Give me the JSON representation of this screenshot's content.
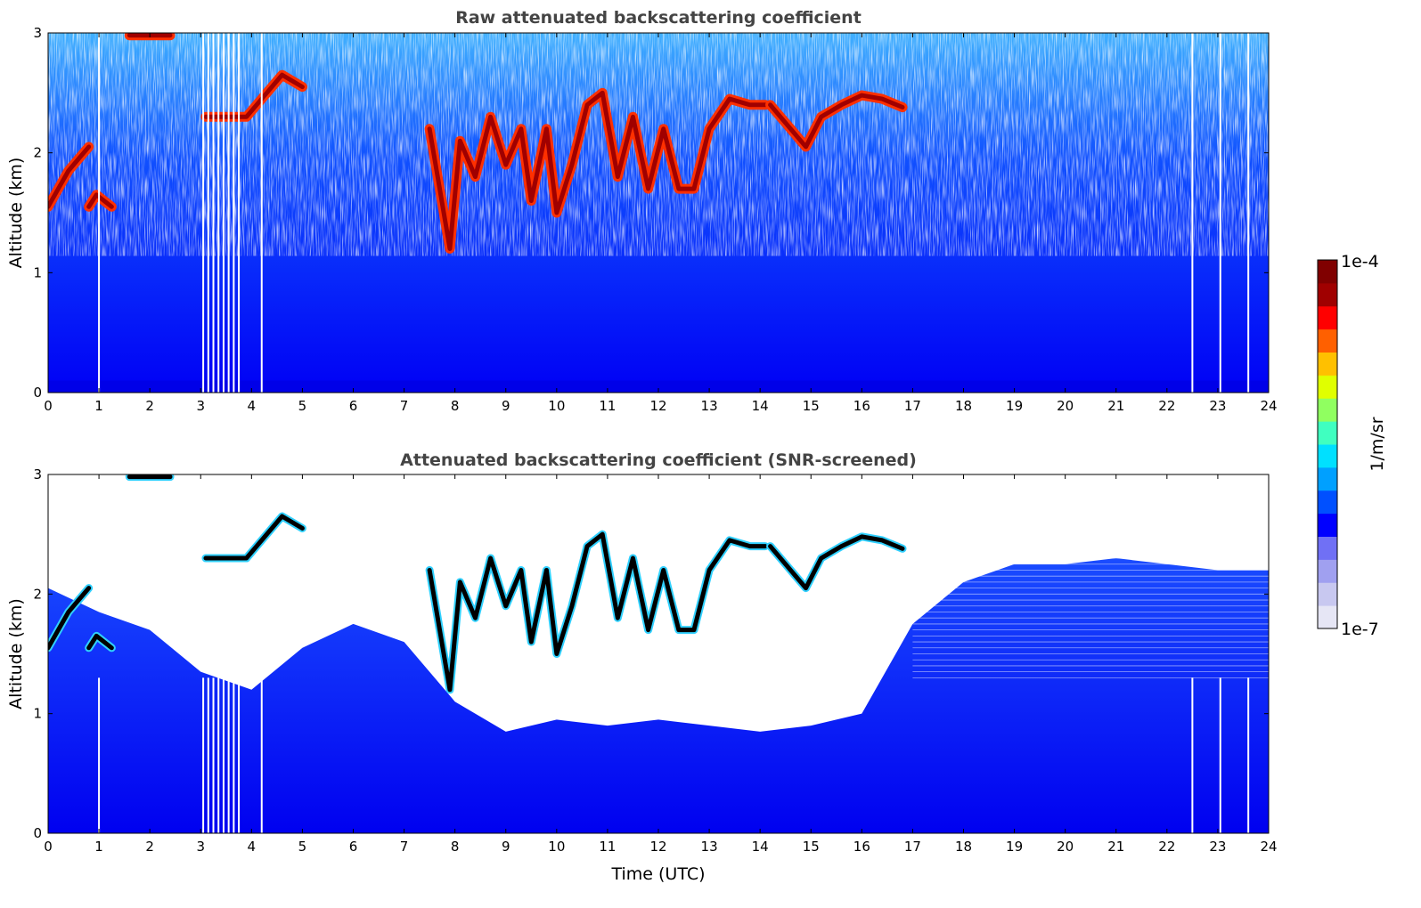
{
  "chart_data": [
    {
      "type": "heatmap",
      "title": "Raw attenuated backscattering coefficient",
      "xlabel": "",
      "ylabel": "Altitude (km)",
      "xlim": [
        0,
        24
      ],
      "ylim": [
        0,
        3
      ],
      "x_ticks": [
        "0",
        "1",
        "2",
        "3",
        "4",
        "5",
        "6",
        "7",
        "8",
        "9",
        "10",
        "11",
        "12",
        "13",
        "14",
        "15",
        "16",
        "17",
        "18",
        "19",
        "20",
        "21",
        "22",
        "23",
        "24"
      ],
      "y_ticks": [
        "0",
        "1",
        "2",
        "3"
      ],
      "colormap": "jet",
      "missing_color": "#ffffff",
      "blank_time_columns_utc": [
        1.0,
        3.05,
        3.15,
        3.25,
        3.35,
        3.45,
        3.55,
        3.65,
        3.75,
        4.2,
        22.5,
        23.05,
        23.6
      ],
      "cloud_layer_tracks": [
        {
          "x": [
            0.0,
            0.2,
            0.4,
            0.6,
            0.8
          ],
          "y": [
            1.55,
            1.7,
            1.85,
            1.95,
            2.05
          ]
        },
        {
          "x": [
            0.8,
            0.95,
            1.1,
            1.25
          ],
          "y": [
            1.55,
            1.65,
            1.6,
            1.55
          ]
        },
        {
          "x": [
            1.6,
            2.0,
            2.4
          ],
          "y": [
            2.98,
            2.98,
            2.98
          ]
        },
        {
          "x": [
            3.1,
            3.5,
            3.9,
            4.2,
            4.6,
            5.0
          ],
          "y": [
            2.3,
            2.3,
            2.3,
            2.45,
            2.65,
            2.55
          ]
        },
        {
          "x": [
            7.5,
            7.9,
            8.1,
            8.4,
            8.7,
            9.0,
            9.3,
            9.5,
            9.8,
            10.0,
            10.3,
            10.6,
            10.9,
            11.2,
            11.5,
            11.8,
            12.1,
            12.4,
            12.7,
            13.0,
            13.4,
            13.8,
            14.1
          ],
          "y": [
            2.2,
            1.2,
            2.1,
            1.8,
            2.3,
            1.9,
            2.2,
            1.6,
            2.2,
            1.5,
            1.9,
            2.4,
            2.5,
            1.8,
            2.3,
            1.7,
            2.2,
            1.7,
            1.7,
            2.2,
            2.45,
            2.4,
            2.4
          ]
        },
        {
          "x": [
            14.2,
            14.6,
            14.9,
            15.2,
            15.6,
            16.0,
            16.4,
            16.8
          ],
          "y": [
            2.4,
            2.2,
            2.05,
            2.3,
            2.4,
            2.48,
            2.45,
            2.38
          ]
        }
      ]
    },
    {
      "type": "heatmap",
      "title": "Attenuated backscattering coefficient (SNR-screened)",
      "xlabel": "Time (UTC)",
      "ylabel": "Altitude (km)",
      "xlim": [
        0,
        24
      ],
      "ylim": [
        0,
        3
      ],
      "x_ticks": [
        "0",
        "1",
        "2",
        "3",
        "4",
        "5",
        "6",
        "7",
        "8",
        "9",
        "10",
        "11",
        "12",
        "13",
        "14",
        "15",
        "16",
        "17",
        "18",
        "19",
        "20",
        "21",
        "22",
        "23",
        "24"
      ],
      "y_ticks": [
        "0",
        "1",
        "2",
        "3"
      ],
      "colormap": "jet",
      "missing_color": "#ffffff",
      "screened_top_km": [
        {
          "x": 0.0,
          "y": 2.05
        },
        {
          "x": 1.0,
          "y": 1.85
        },
        {
          "x": 2.0,
          "y": 1.7
        },
        {
          "x": 3.0,
          "y": 1.35
        },
        {
          "x": 4.0,
          "y": 1.2
        },
        {
          "x": 5.0,
          "y": 1.55
        },
        {
          "x": 6.0,
          "y": 1.75
        },
        {
          "x": 7.0,
          "y": 1.6
        },
        {
          "x": 8.0,
          "y": 1.1
        },
        {
          "x": 9.0,
          "y": 0.85
        },
        {
          "x": 10.0,
          "y": 0.95
        },
        {
          "x": 11.0,
          "y": 0.9
        },
        {
          "x": 12.0,
          "y": 0.95
        },
        {
          "x": 13.0,
          "y": 0.9
        },
        {
          "x": 14.0,
          "y": 0.85
        },
        {
          "x": 15.0,
          "y": 0.9
        },
        {
          "x": 16.0,
          "y": 1.0
        },
        {
          "x": 17.0,
          "y": 1.75
        },
        {
          "x": 18.0,
          "y": 2.1
        },
        {
          "x": 19.0,
          "y": 2.25
        },
        {
          "x": 20.0,
          "y": 2.25
        },
        {
          "x": 21.0,
          "y": 2.3
        },
        {
          "x": 22.0,
          "y": 2.25
        },
        {
          "x": 23.0,
          "y": 2.2
        },
        {
          "x": 24.0,
          "y": 2.2
        }
      ]
    }
  ],
  "colorbar": {
    "label": "1/m/sr",
    "max_label": "1e-4",
    "min_label": "1e-7",
    "colors": [
      "#e6e6f5",
      "#c8c8f0",
      "#a0a0f0",
      "#7070f5",
      "#0000ff",
      "#0050ff",
      "#00a0ff",
      "#00e0ff",
      "#40ffc0",
      "#90ff60",
      "#e0ff00",
      "#ffc000",
      "#ff6000",
      "#ff0000",
      "#a00000",
      "#800000"
    ]
  }
}
